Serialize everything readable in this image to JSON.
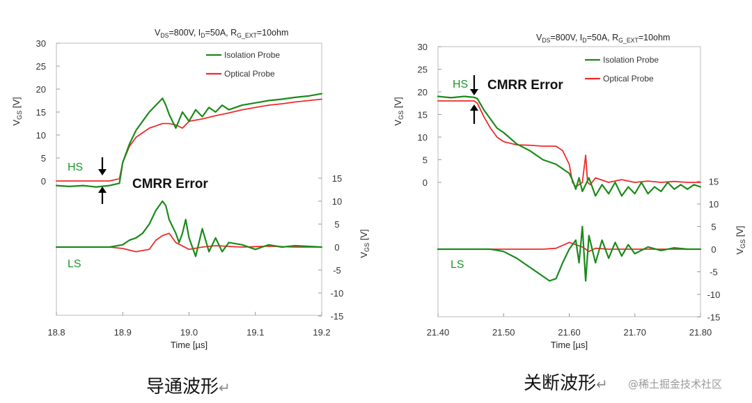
{
  "colors": {
    "isolation": "#1a8a1a",
    "optical": "#ee2a2a",
    "label_green": "#1a9a2a"
  },
  "captions": {
    "left": "导通波形",
    "right": "关断波形",
    "return_mark": "↵"
  },
  "watermark": "@稀土掘金技术社区",
  "chart_data": [
    {
      "type": "line",
      "title": "V_DS=800V, I_D=50A, R_G_EXT=10ohm",
      "xlabel": "Time [µs]",
      "ylabel_left": "V_GS [V]",
      "ylabel_right": "V_GS [V]",
      "xlim": [
        18.8,
        19.2
      ],
      "x_ticks": [
        "18.8",
        "18.9",
        "19.0",
        "19.1",
        "19.2"
      ],
      "y_left_ticks": [
        "30",
        "25",
        "20",
        "15",
        "10",
        "5",
        "0"
      ],
      "y_right_ticks": [
        "15",
        "10",
        "5",
        "0",
        "-5",
        "-10",
        "-15"
      ],
      "hs_label": "HS",
      "ls_label": "LS",
      "annotation": "CMRR Error",
      "legend": [
        "Isolation Probe",
        "Optical Probe"
      ],
      "legend_position": "top-right",
      "grid": false,
      "hs_series": [
        {
          "name": "Isolation Probe",
          "x": [
            18.8,
            18.82,
            18.84,
            18.86,
            18.88,
            18.895,
            18.9,
            18.91,
            18.92,
            18.93,
            18.94,
            18.95,
            18.96,
            18.965,
            18.97,
            18.98,
            18.99,
            19.0,
            19.01,
            19.02,
            19.03,
            19.04,
            19.05,
            19.06,
            19.08,
            19.1,
            19.12,
            19.14,
            19.16,
            19.18,
            19.2
          ],
          "y": [
            -1.0,
            -1.2,
            -1.0,
            -1.3,
            -1.0,
            -0.5,
            4,
            8,
            11,
            13,
            15,
            16.5,
            18,
            16.5,
            14.5,
            11.5,
            15,
            13,
            15.5,
            14,
            16,
            15,
            16.5,
            15.5,
            16.5,
            17,
            17.5,
            17.8,
            18.2,
            18.5,
            19
          ]
        },
        {
          "name": "Optical Probe",
          "x": [
            18.8,
            18.82,
            18.84,
            18.86,
            18.88,
            18.895,
            18.9,
            18.91,
            18.92,
            18.93,
            18.94,
            18.95,
            18.96,
            18.97,
            18.98,
            18.99,
            19.0,
            19.02,
            19.04,
            19.06,
            19.08,
            19.1,
            19.12,
            19.14,
            19.16,
            19.18,
            19.2
          ],
          "y": [
            0,
            0,
            0,
            0,
            0,
            0.5,
            4,
            7.5,
            9.5,
            10.5,
            11.5,
            12,
            12.5,
            12.5,
            12.2,
            11.5,
            13,
            13.5,
            14.2,
            14.8,
            15.5,
            16,
            16.5,
            16.8,
            17.2,
            17.5,
            17.8
          ]
        }
      ],
      "ls_series": [
        {
          "name": "Isolation Probe",
          "x": [
            18.8,
            18.84,
            18.88,
            18.9,
            18.91,
            18.92,
            18.93,
            18.94,
            18.95,
            18.96,
            18.965,
            18.97,
            18.98,
            18.985,
            18.99,
            18.995,
            19.0,
            19.01,
            19.02,
            19.03,
            19.04,
            19.05,
            19.06,
            19.08,
            19.1,
            19.12,
            19.14,
            19.16,
            19.2
          ],
          "y": [
            0,
            0,
            0,
            0.5,
            1.5,
            2,
            3,
            5,
            8,
            10,
            9,
            6,
            3,
            1,
            3,
            6,
            2,
            -2,
            4,
            -1,
            2,
            -1,
            1,
            0.5,
            -0.5,
            0.5,
            0,
            0.3,
            0
          ]
        },
        {
          "name": "Optical Probe",
          "x": [
            18.8,
            18.84,
            18.88,
            18.9,
            18.92,
            18.94,
            18.95,
            18.96,
            18.97,
            18.98,
            19.0,
            19.02,
            19.04,
            19.08,
            19.12,
            19.16,
            19.2
          ],
          "y": [
            0,
            0,
            0,
            -0.3,
            -1,
            -0.5,
            1.5,
            2.5,
            3,
            1,
            -0.5,
            0,
            0.3,
            0,
            0.2,
            0,
            0
          ]
        }
      ]
    },
    {
      "type": "line",
      "title": "V_DS=800V, I_D=50A, R_G_EXT=10ohm",
      "xlabel": "Time [µs]",
      "ylabel_left": "V_GS [V]",
      "ylabel_right": "V_GS [V]",
      "xlim": [
        21.4,
        21.8
      ],
      "x_ticks": [
        "21.40",
        "21.50",
        "21.60",
        "21.70",
        "21.80"
      ],
      "y_left_ticks": [
        "30",
        "25",
        "20",
        "15",
        "10",
        "5",
        "0"
      ],
      "y_right_ticks": [
        "15",
        "10",
        "5",
        "0",
        "-5",
        "-10",
        "-15"
      ],
      "hs_label": "HS",
      "ls_label": "LS",
      "annotation": "CMRR Error",
      "legend": [
        "Isolation Probe",
        "Optical Probe"
      ],
      "legend_position": "top-right",
      "grid": false,
      "hs_series": [
        {
          "name": "Isolation Probe",
          "x": [
            21.4,
            21.42,
            21.44,
            21.455,
            21.46,
            21.47,
            21.48,
            21.49,
            21.5,
            21.52,
            21.54,
            21.56,
            21.58,
            21.6,
            21.605,
            21.61,
            21.615,
            21.62,
            21.63,
            21.64,
            21.65,
            21.66,
            21.67,
            21.68,
            21.69,
            21.7,
            21.71,
            21.72,
            21.73,
            21.74,
            21.75,
            21.76,
            21.77,
            21.78,
            21.79,
            21.8
          ],
          "y": [
            19,
            18.7,
            19,
            18.8,
            18.5,
            16,
            14,
            12,
            11,
            8.5,
            7,
            5,
            4,
            2,
            0.5,
            -1.5,
            1,
            -2,
            1,
            -3,
            -0.5,
            -2.5,
            0,
            -3,
            -1,
            -2.5,
            0,
            -2.5,
            -1,
            -2,
            0,
            -1.5,
            -0.5,
            -1.5,
            -0.5,
            -1
          ]
        },
        {
          "name": "Optical Probe",
          "x": [
            21.4,
            21.42,
            21.44,
            21.455,
            21.46,
            21.47,
            21.48,
            21.49,
            21.5,
            21.52,
            21.54,
            21.56,
            21.58,
            21.59,
            21.6,
            21.605,
            21.61,
            21.62,
            21.625,
            21.628,
            21.632,
            21.64,
            21.66,
            21.68,
            21.7,
            21.72,
            21.74,
            21.76,
            21.78,
            21.8
          ],
          "y": [
            18,
            18,
            18,
            18,
            17.5,
            14.5,
            12,
            10,
            9,
            8.3,
            8.2,
            8,
            8,
            7,
            4,
            0,
            -1,
            0,
            6,
            0,
            -0.5,
            1,
            0,
            0.6,
            0,
            0.3,
            0,
            0.2,
            0,
            0
          ]
        }
      ],
      "ls_series": [
        {
          "name": "Isolation Probe",
          "x": [
            21.4,
            21.44,
            21.48,
            21.5,
            21.52,
            21.54,
            21.56,
            21.57,
            21.58,
            21.59,
            21.6,
            21.61,
            21.615,
            21.62,
            21.625,
            21.63,
            21.64,
            21.65,
            21.66,
            21.67,
            21.68,
            21.69,
            21.7,
            21.72,
            21.74,
            21.76,
            21.78,
            21.8
          ],
          "y": [
            0,
            0,
            0,
            -0.5,
            -2,
            -4,
            -6,
            -7,
            -6.5,
            -3,
            0,
            2,
            -3,
            5,
            -7,
            3,
            -3,
            2,
            -2,
            1.5,
            -1.5,
            1,
            -1,
            0.5,
            -0.3,
            0.3,
            0,
            0
          ]
        },
        {
          "name": "Optical Probe",
          "x": [
            21.4,
            21.44,
            21.48,
            21.52,
            21.56,
            21.58,
            21.6,
            21.61,
            21.62,
            21.63,
            21.64,
            21.66,
            21.7,
            21.74,
            21.8
          ],
          "y": [
            0,
            0,
            0,
            0,
            0,
            0.2,
            1.5,
            1,
            0.5,
            -0.5,
            0.2,
            0,
            0,
            0,
            0
          ]
        }
      ]
    }
  ]
}
